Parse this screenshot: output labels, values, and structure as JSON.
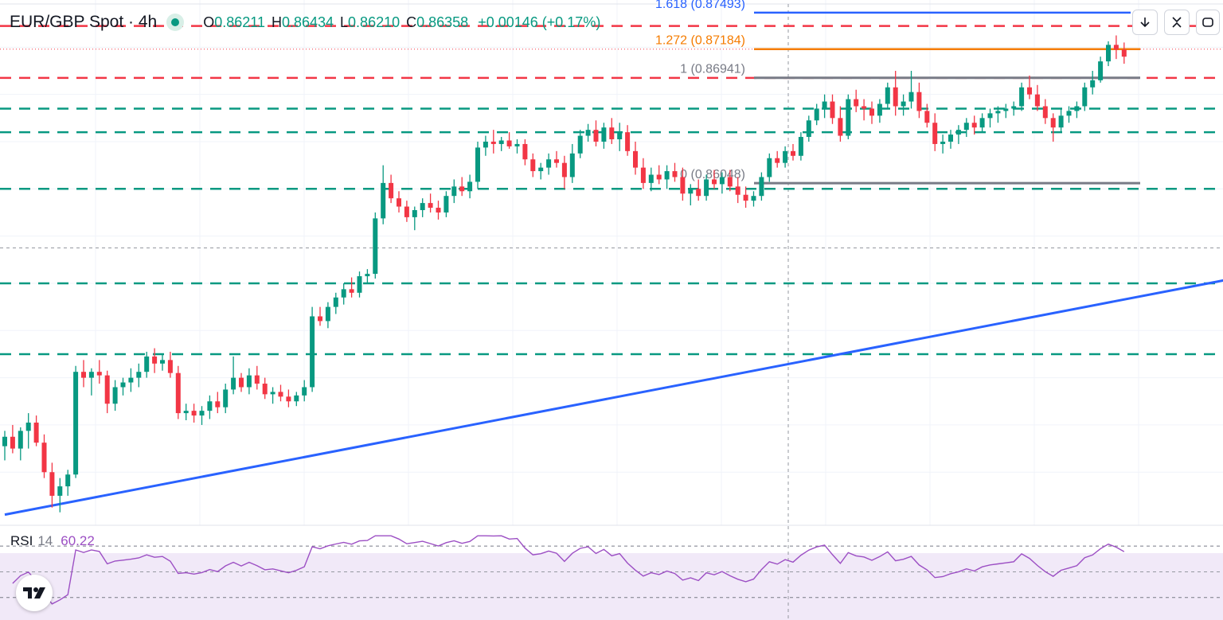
{
  "header": {
    "symbol": "EUR/GBP Spot · 4h",
    "open_key": "O",
    "open": "0.86211",
    "high_key": "H",
    "high": "0.86434",
    "low_key": "L",
    "low": "0.86210",
    "close_key": "C",
    "close": "0.86358",
    "change": "+0.00146 (+0.17%)"
  },
  "rsi": {
    "label": "RSI",
    "period": "14",
    "value": "60.22",
    "upper": 70,
    "lower": 30,
    "line_color": "#9c4fc4"
  },
  "icons": [
    "arrow-down-icon",
    "collapse-icon",
    "fullscreen-icon",
    "tradingview-logo-icon"
  ],
  "colors": {
    "up": "#089981",
    "down": "#f23645",
    "trend": "#2962ff",
    "fib_161": "#2962ff",
    "fib_127": "#f57c00",
    "fib_box": "#787b86",
    "rsi_band": "#f1e9f8"
  },
  "chart_data": {
    "type": "candlestick",
    "title": "EUR/GBP Spot · 4h",
    "ylim": [
      0.8315,
      0.876
    ],
    "fib_levels": [
      {
        "ratio": "1.618",
        "price": "0.87493",
        "text": "1.618 (0.87493)"
      },
      {
        "ratio": "1.272",
        "price": "0.87184",
        "text": "1.272 (0.87184)"
      },
      {
        "ratio": "1",
        "price": "0.86941",
        "text": "1 (0.86941)"
      },
      {
        "ratio": "0",
        "price": "0.86048",
        "text": "0 (0.86048)"
      }
    ],
    "resistance_levels": [
      0.8738,
      0.8694
    ],
    "support_levels": [
      0.8668,
      0.8648,
      0.86,
      0.852,
      0.846
    ],
    "trendline": {
      "from": [
        0,
        0.8324
      ],
      "to": [
        275,
        0.8677
      ]
    },
    "inner_trendline": {
      "from": [
        203,
        0.8609
      ],
      "to": [
        272,
        0.8695
      ]
    },
    "candles": [
      [
        0.8382,
        0.8395,
        0.837,
        0.839
      ],
      [
        0.839,
        0.84,
        0.8376,
        0.838
      ],
      [
        0.838,
        0.8398,
        0.837,
        0.8395
      ],
      [
        0.8395,
        0.841,
        0.838,
        0.8402
      ],
      [
        0.8402,
        0.8408,
        0.8382,
        0.8385
      ],
      [
        0.8385,
        0.8392,
        0.8355,
        0.836
      ],
      [
        0.836,
        0.8368,
        0.833,
        0.834
      ],
      [
        0.834,
        0.8355,
        0.8326,
        0.8348
      ],
      [
        0.8348,
        0.8362,
        0.834,
        0.8358
      ],
      [
        0.8358,
        0.845,
        0.8355,
        0.8445
      ],
      [
        0.8445,
        0.8455,
        0.8432,
        0.844
      ],
      [
        0.844,
        0.8448,
        0.8425,
        0.8445
      ],
      [
        0.8445,
        0.8455,
        0.8435,
        0.8442
      ],
      [
        0.8442,
        0.8446,
        0.841,
        0.8418
      ],
      [
        0.8418,
        0.8438,
        0.8412,
        0.8432
      ],
      [
        0.8432,
        0.844,
        0.8425,
        0.8436
      ],
      [
        0.8436,
        0.8448,
        0.8428,
        0.844
      ],
      [
        0.844,
        0.8452,
        0.8432,
        0.8445
      ],
      [
        0.8445,
        0.8462,
        0.844,
        0.8458
      ],
      [
        0.8458,
        0.8465,
        0.8444,
        0.8452
      ],
      [
        0.8452,
        0.846,
        0.8446,
        0.8455
      ],
      [
        0.8455,
        0.8462,
        0.844,
        0.8444
      ],
      [
        0.8444,
        0.845,
        0.8405,
        0.841
      ],
      [
        0.841,
        0.8418,
        0.8404,
        0.8412
      ],
      [
        0.8412,
        0.8418,
        0.8402,
        0.8408
      ],
      [
        0.8408,
        0.8416,
        0.84,
        0.8412
      ],
      [
        0.8412,
        0.8425,
        0.8405,
        0.842
      ],
      [
        0.842,
        0.8428,
        0.841,
        0.8415
      ],
      [
        0.8415,
        0.8435,
        0.841,
        0.843
      ],
      [
        0.843,
        0.8458,
        0.8426,
        0.844
      ],
      [
        0.844,
        0.8444,
        0.8428,
        0.8432
      ],
      [
        0.8432,
        0.8448,
        0.8426,
        0.8442
      ],
      [
        0.8442,
        0.845,
        0.843,
        0.8435
      ],
      [
        0.8435,
        0.844,
        0.8422,
        0.8426
      ],
      [
        0.8426,
        0.8432,
        0.8418,
        0.8428
      ],
      [
        0.8428,
        0.8434,
        0.842,
        0.8424
      ],
      [
        0.8424,
        0.843,
        0.8415,
        0.842
      ],
      [
        0.842,
        0.8428,
        0.8416,
        0.8425
      ],
      [
        0.8425,
        0.8438,
        0.842,
        0.8432
      ],
      [
        0.8432,
        0.85,
        0.8428,
        0.8492
      ],
      [
        0.8492,
        0.85,
        0.8484,
        0.8488
      ],
      [
        0.8488,
        0.8504,
        0.8482,
        0.85
      ],
      [
        0.85,
        0.8512,
        0.8494,
        0.8508
      ],
      [
        0.8508,
        0.852,
        0.8502,
        0.8515
      ],
      [
        0.8515,
        0.8525,
        0.8508,
        0.8512
      ],
      [
        0.8512,
        0.853,
        0.8508,
        0.8526
      ],
      [
        0.8526,
        0.8532,
        0.852,
        0.8528
      ],
      [
        0.8528,
        0.858,
        0.8524,
        0.8575
      ],
      [
        0.8575,
        0.862,
        0.857,
        0.8605
      ],
      [
        0.8605,
        0.8612,
        0.8588,
        0.8592
      ],
      [
        0.8592,
        0.8598,
        0.858,
        0.8585
      ],
      [
        0.8585,
        0.859,
        0.8572,
        0.8576
      ],
      [
        0.8576,
        0.8585,
        0.8565,
        0.8582
      ],
      [
        0.8582,
        0.8592,
        0.8576,
        0.8588
      ],
      [
        0.8588,
        0.8596,
        0.858,
        0.8584
      ],
      [
        0.8584,
        0.859,
        0.8574,
        0.858
      ],
      [
        0.858,
        0.8598,
        0.8576,
        0.8594
      ],
      [
        0.8594,
        0.8608,
        0.8588,
        0.8602
      ],
      [
        0.8602,
        0.861,
        0.8594,
        0.8598
      ],
      [
        0.8598,
        0.8612,
        0.8592,
        0.8606
      ],
      [
        0.8606,
        0.864,
        0.86,
        0.8635
      ],
      [
        0.8635,
        0.8645,
        0.8628,
        0.864
      ],
      [
        0.864,
        0.865,
        0.863,
        0.8638
      ],
      [
        0.8638,
        0.8644,
        0.8632,
        0.8641
      ],
      [
        0.8641,
        0.8648,
        0.8634,
        0.8636
      ],
      [
        0.8636,
        0.8642,
        0.863,
        0.8638
      ],
      [
        0.8638,
        0.8642,
        0.862,
        0.8625
      ],
      [
        0.8625,
        0.863,
        0.861,
        0.8615
      ],
      [
        0.8615,
        0.8622,
        0.8608,
        0.8618
      ],
      [
        0.8618,
        0.863,
        0.8612,
        0.8625
      ],
      [
        0.8625,
        0.8632,
        0.8618,
        0.8622
      ],
      [
        0.8622,
        0.8628,
        0.86,
        0.861
      ],
      [
        0.861,
        0.8638,
        0.8605,
        0.863
      ],
      [
        0.863,
        0.865,
        0.8626,
        0.8645
      ],
      [
        0.8645,
        0.8655,
        0.864,
        0.865
      ],
      [
        0.865,
        0.8658,
        0.8636,
        0.864
      ],
      [
        0.864,
        0.8656,
        0.8634,
        0.8652
      ],
      [
        0.8652,
        0.866,
        0.8638,
        0.8642
      ],
      [
        0.8642,
        0.8656,
        0.8632,
        0.8648
      ],
      [
        0.8648,
        0.8654,
        0.8628,
        0.8632
      ],
      [
        0.8632,
        0.864,
        0.8612,
        0.8618
      ],
      [
        0.8618,
        0.8626,
        0.86,
        0.8605
      ],
      [
        0.8605,
        0.8618,
        0.8598,
        0.8612
      ],
      [
        0.8612,
        0.862,
        0.8604,
        0.8608
      ],
      [
        0.8608,
        0.862,
        0.86,
        0.8615
      ],
      [
        0.8615,
        0.8622,
        0.8606,
        0.861
      ],
      [
        0.861,
        0.8618,
        0.859,
        0.8596
      ],
      [
        0.8596,
        0.8604,
        0.8586,
        0.86
      ],
      [
        0.86,
        0.8608,
        0.859,
        0.8594
      ],
      [
        0.8594,
        0.8612,
        0.859,
        0.8608
      ],
      [
        0.8608,
        0.8616,
        0.86,
        0.8604
      ],
      [
        0.8604,
        0.8614,
        0.8596,
        0.861
      ],
      [
        0.861,
        0.8616,
        0.8598,
        0.8602
      ],
      [
        0.8602,
        0.861,
        0.8588,
        0.8595
      ],
      [
        0.8595,
        0.8602,
        0.8584,
        0.859
      ],
      [
        0.859,
        0.8598,
        0.8585,
        0.8594
      ],
      [
        0.8594,
        0.8614,
        0.859,
        0.861
      ],
      [
        0.861,
        0.863,
        0.8606,
        0.8626
      ],
      [
        0.8626,
        0.8632,
        0.8618,
        0.8622
      ],
      [
        0.8622,
        0.8636,
        0.8618,
        0.8632
      ],
      [
        0.8632,
        0.8638,
        0.8624,
        0.8628
      ],
      [
        0.8628,
        0.8648,
        0.8624,
        0.8644
      ],
      [
        0.8644,
        0.8662,
        0.864,
        0.8658
      ],
      [
        0.8658,
        0.8672,
        0.8654,
        0.8668
      ],
      [
        0.8668,
        0.868,
        0.866,
        0.8674
      ],
      [
        0.8674,
        0.868,
        0.8655,
        0.866
      ],
      [
        0.866,
        0.867,
        0.864,
        0.8645
      ],
      [
        0.8645,
        0.868,
        0.8642,
        0.8676
      ],
      [
        0.8676,
        0.8684,
        0.8665,
        0.867
      ],
      [
        0.867,
        0.8676,
        0.8658,
        0.8668
      ],
      [
        0.8668,
        0.8674,
        0.8655,
        0.8662
      ],
      [
        0.8662,
        0.8676,
        0.8656,
        0.8672
      ],
      [
        0.8672,
        0.869,
        0.8668,
        0.8686
      ],
      [
        0.8686,
        0.87,
        0.8662,
        0.867
      ],
      [
        0.867,
        0.868,
        0.8662,
        0.8674
      ],
      [
        0.8674,
        0.87,
        0.8668,
        0.8682
      ],
      [
        0.8682,
        0.869,
        0.866,
        0.8666
      ],
      [
        0.8666,
        0.8672,
        0.8652,
        0.8656
      ],
      [
        0.8656,
        0.8664,
        0.8632,
        0.8638
      ],
      [
        0.8638,
        0.8646,
        0.863,
        0.864
      ],
      [
        0.864,
        0.865,
        0.8634,
        0.8646
      ],
      [
        0.8646,
        0.8654,
        0.8638,
        0.865
      ],
      [
        0.865,
        0.866,
        0.8644,
        0.8656
      ],
      [
        0.8656,
        0.8662,
        0.8646,
        0.8652
      ],
      [
        0.8652,
        0.8664,
        0.8648,
        0.866
      ],
      [
        0.866,
        0.8668,
        0.8652,
        0.8664
      ],
      [
        0.8664,
        0.867,
        0.8656,
        0.8666
      ],
      [
        0.8666,
        0.8672,
        0.866,
        0.8668
      ],
      [
        0.8668,
        0.8674,
        0.8662,
        0.867
      ],
      [
        0.867,
        0.869,
        0.8666,
        0.8686
      ],
      [
        0.8686,
        0.8696,
        0.8676,
        0.868
      ],
      [
        0.868,
        0.8688,
        0.8666,
        0.867
      ],
      [
        0.867,
        0.8676,
        0.8655,
        0.866
      ],
      [
        0.866,
        0.8664,
        0.864,
        0.8652
      ],
      [
        0.8652,
        0.8668,
        0.8648,
        0.8662
      ],
      [
        0.8662,
        0.867,
        0.8656,
        0.8666
      ],
      [
        0.8666,
        0.8674,
        0.866,
        0.867
      ],
      [
        0.867,
        0.869,
        0.8666,
        0.8686
      ],
      [
        0.8686,
        0.87,
        0.868,
        0.8692
      ],
      [
        0.8692,
        0.8712,
        0.869,
        0.8708
      ],
      [
        0.8708,
        0.8725,
        0.8704,
        0.8722
      ],
      [
        0.8722,
        0.873,
        0.871,
        0.8718
      ],
      [
        0.8718,
        0.8724,
        0.8706,
        0.8712
      ]
    ]
  }
}
